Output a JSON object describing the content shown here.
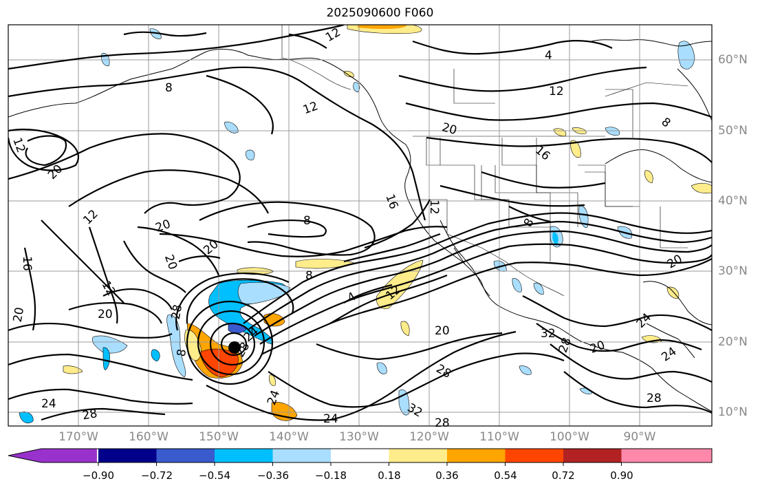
{
  "title": "2025090600 F060",
  "colors": {
    "coast": "#000000",
    "grid": "#9a9a9a",
    "contour": "#000000",
    "storm_center": "#000000"
  },
  "lon_labels": [
    "170°W",
    "160°W",
    "150°W",
    "140°W",
    "130°W",
    "120°W",
    "110°W",
    "100°W",
    "90°W"
  ],
  "lat_labels": [
    "60°N",
    "50°N",
    "40°N",
    "30°N",
    "20°N",
    "10°N"
  ],
  "contour_labels": [
    "12",
    "4",
    "8",
    "12",
    "12",
    "20",
    "16",
    "8",
    "12",
    "20",
    "16",
    "12",
    "20",
    "8",
    "12",
    "8",
    "20",
    "16",
    "20",
    "20",
    "12",
    "20",
    "8",
    "20",
    "12",
    "4",
    "20",
    "24",
    "32",
    "28",
    "20",
    "24",
    "24",
    "28",
    "28",
    "24",
    "24",
    "28",
    "32",
    "28",
    "28",
    "24",
    "8",
    "28"
  ],
  "colorbar": {
    "colors": [
      "#9932cc",
      "#00008b",
      "#3a5bcd",
      "#00bfff",
      "#aadeff",
      "#ffffff",
      "#ffec8b",
      "#ffa500",
      "#ff4500",
      "#b22222",
      "#ff88aa"
    ],
    "tick_labels": [
      "−0.90",
      "−0.72",
      "−0.54",
      "−0.36",
      "−0.18",
      "0.18",
      "0.36",
      "0.54",
      "0.72",
      "0.90"
    ]
  }
}
